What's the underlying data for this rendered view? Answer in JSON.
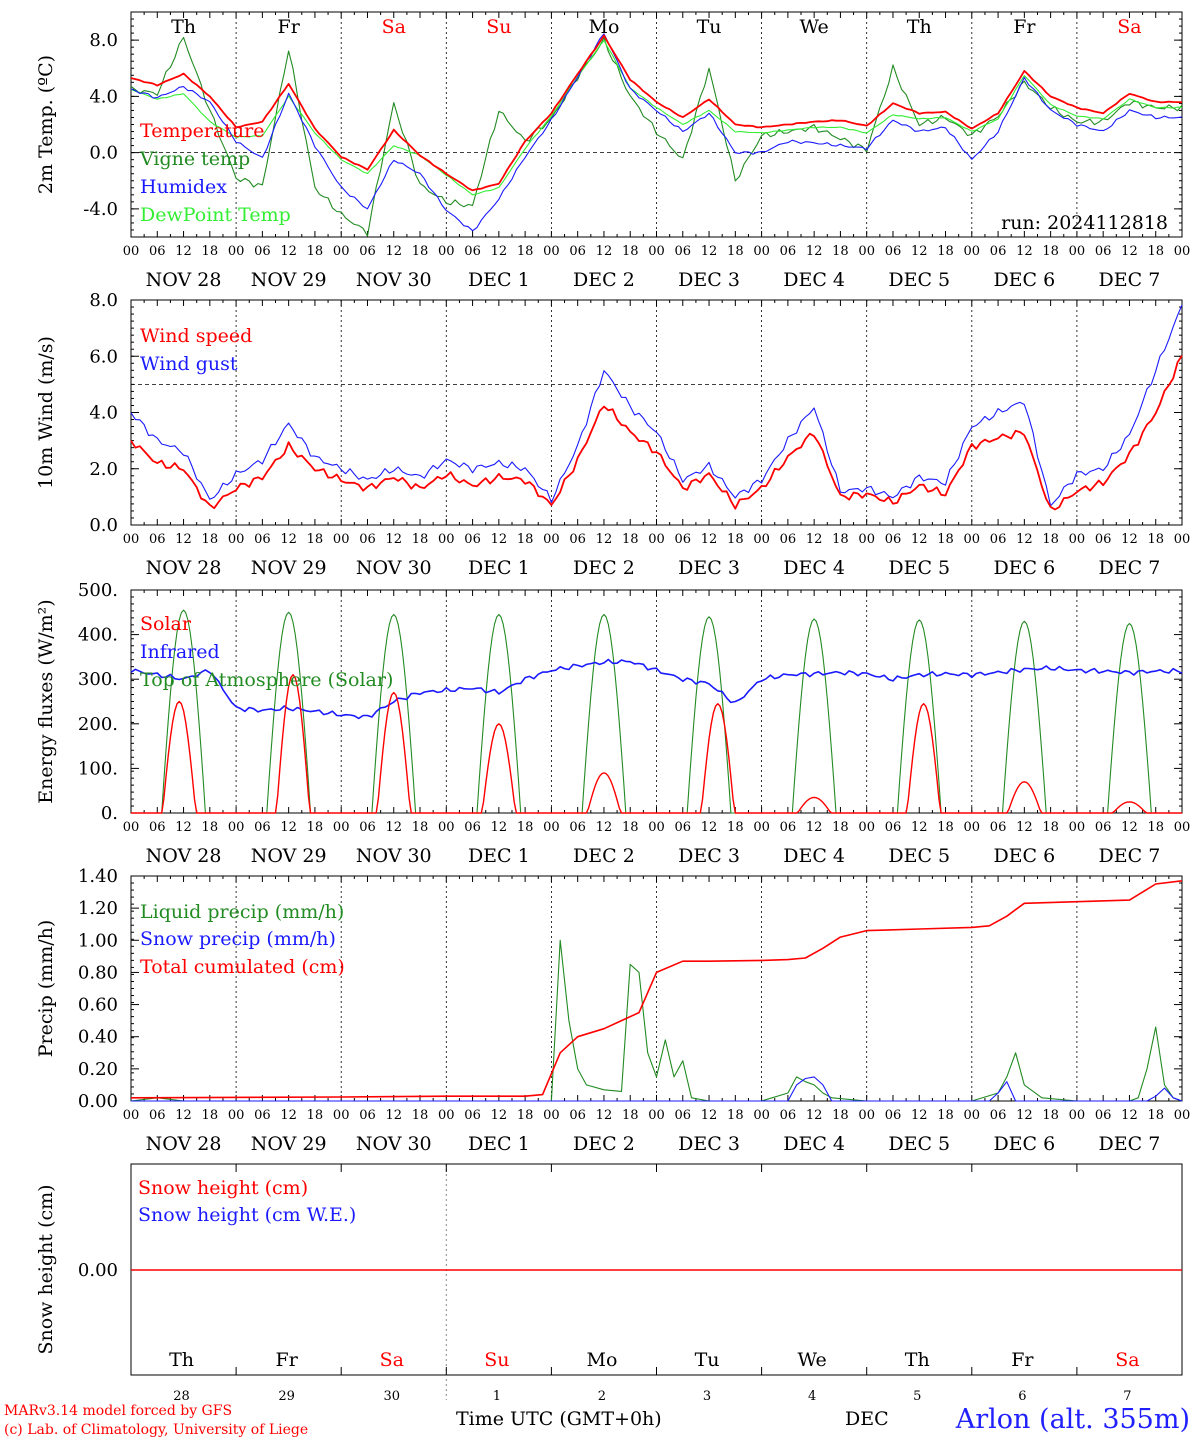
{
  "run_label": "run: 2024112818",
  "footer": {
    "credit_line1": "MARv3.14 model forced by GFS",
    "credit_line2": "(c) Lab. of Climatology, University of Liege",
    "time_axis_label": "Time UTC (GMT+0h)",
    "month_label": "DEC",
    "station": "Arlon (alt. 355m)"
  },
  "colors": {
    "red": "#ff0000",
    "green": "#228b22",
    "blue": "#1a1aff",
    "lightgreen": "#33ee33",
    "weekend": "#ff0000",
    "text": "#000000",
    "station": "#2020ff"
  },
  "day_names": [
    "Th",
    "Fr",
    "Sa",
    "Su",
    "Mo",
    "Tu",
    "We",
    "Th",
    "Fr",
    "Sa"
  ],
  "day_is_weekend": [
    false,
    false,
    true,
    true,
    false,
    false,
    false,
    false,
    false,
    true
  ],
  "date_labels": [
    "NOV 28",
    "NOV 29",
    "NOV 30",
    "DEC  1",
    "DEC  2",
    "DEC  3",
    "DEC  4",
    "DEC  5",
    "DEC  6",
    "DEC  7"
  ],
  "hour_labels": [
    "00",
    "06",
    "12",
    "18"
  ],
  "last_hour_label": "00",
  "day_numbers": [
    "28",
    "29",
    "30",
    "1",
    "2",
    "3",
    "4",
    "5",
    "6",
    "7"
  ],
  "chart_data": [
    {
      "type": "line",
      "ylabel": "2m Temp. (ºC)",
      "yticks": [
        "-4.0",
        "0.0",
        "4.0",
        "8.0"
      ],
      "ylim": [
        -6,
        10
      ],
      "xlim_hours": [
        0,
        240
      ],
      "reference_line": 0,
      "series": [
        {
          "name": "Temperature",
          "color": "red",
          "x": [
            0,
            6,
            12,
            18,
            24,
            30,
            36,
            42,
            48,
            54,
            60,
            66,
            72,
            78,
            84,
            90,
            96,
            102,
            108,
            114,
            120,
            126,
            132,
            138,
            144,
            150,
            156,
            162,
            168,
            174,
            180,
            186,
            192,
            198,
            204,
            210,
            216,
            222,
            228,
            234,
            240
          ],
          "y": [
            5.3,
            4.8,
            5.6,
            4.0,
            1.8,
            2.2,
            4.9,
            1.7,
            -0.3,
            -1.2,
            1.6,
            -0.2,
            -1.5,
            -2.7,
            -2.2,
            0.8,
            2.8,
            5.6,
            8.3,
            5.2,
            3.6,
            2.5,
            3.8,
            2.0,
            1.8,
            2.0,
            2.2,
            2.3,
            1.9,
            3.5,
            2.8,
            2.9,
            1.7,
            2.8,
            5.8,
            4.0,
            3.2,
            2.8,
            4.2,
            3.6,
            3.6
          ]
        },
        {
          "name": "Vigne temp",
          "color": "green",
          "x": [
            0,
            6,
            12,
            18,
            24,
            30,
            36,
            42,
            48,
            54,
            60,
            66,
            72,
            78,
            84,
            90,
            96,
            102,
            108,
            114,
            120,
            126,
            132,
            138,
            144,
            150,
            156,
            162,
            168,
            174,
            180,
            186,
            192,
            198,
            204,
            210,
            216,
            222,
            228,
            234,
            240
          ],
          "y": [
            4.5,
            4.2,
            8.2,
            3.0,
            -1.8,
            -2.4,
            7.4,
            -2.5,
            -4.4,
            -5.7,
            3.5,
            -2.3,
            -3.5,
            -3.8,
            3.0,
            0.8,
            2.4,
            5.4,
            8.0,
            4.0,
            1.5,
            -0.5,
            6.0,
            -2.0,
            1.2,
            1.5,
            1.8,
            1.0,
            0.2,
            6.0,
            2.0,
            2.5,
            1.2,
            2.6,
            5.0,
            3.2,
            2.2,
            2.2,
            3.6,
            3.2,
            3.2
          ]
        },
        {
          "name": "Humidex",
          "color": "blue",
          "x": [
            0,
            6,
            12,
            18,
            24,
            30,
            36,
            42,
            48,
            54,
            60,
            66,
            72,
            78,
            84,
            90,
            96,
            102,
            108,
            114,
            120,
            126,
            132,
            138,
            144,
            150,
            156,
            162,
            168,
            174,
            180,
            186,
            192,
            198,
            204,
            210,
            216,
            222,
            228,
            234,
            240
          ],
          "y": [
            4.5,
            3.9,
            4.7,
            3.6,
            0.8,
            -0.4,
            4.2,
            0.5,
            -2.5,
            -4.0,
            -0.5,
            -1.5,
            -4.1,
            -5.6,
            -3.3,
            -0.3,
            2.3,
            5.4,
            8.5,
            4.5,
            3.0,
            1.5,
            2.8,
            0.0,
            0.0,
            0.8,
            0.7,
            0.5,
            0.3,
            2.3,
            1.5,
            1.8,
            -0.5,
            1.5,
            5.3,
            3.0,
            2.0,
            1.5,
            3.0,
            2.5,
            2.5
          ]
        },
        {
          "name": "DewPoint Temp",
          "color": "lightgreen",
          "x": [
            0,
            6,
            12,
            18,
            24,
            30,
            36,
            42,
            48,
            54,
            60,
            66,
            72,
            78,
            84,
            90,
            96,
            102,
            108,
            114,
            120,
            126,
            132,
            138,
            144,
            150,
            156,
            162,
            168,
            174,
            180,
            186,
            192,
            198,
            204,
            210,
            216,
            222,
            228,
            234,
            240
          ],
          "y": [
            4.5,
            3.8,
            4.2,
            2.2,
            1.1,
            1.2,
            4.0,
            1.4,
            -0.5,
            -1.5,
            0.5,
            -0.2,
            -1.6,
            -3.0,
            -2.5,
            0.3,
            2.6,
            5.4,
            8.0,
            4.6,
            3.2,
            2.0,
            3.0,
            1.5,
            1.4,
            1.6,
            1.8,
            1.8,
            1.4,
            2.7,
            2.4,
            2.5,
            1.5,
            2.4,
            5.5,
            3.4,
            2.6,
            2.4,
            3.8,
            3.2,
            3.2
          ]
        }
      ]
    },
    {
      "type": "line",
      "ylabel": "10m Wind (m/s)",
      "yticks": [
        "0.0",
        "2.0",
        "4.0",
        "6.0",
        "8.0"
      ],
      "ylim": [
        0,
        8
      ],
      "xlim_hours": [
        0,
        240
      ],
      "reference_line": 5,
      "series": [
        {
          "name": "Wind speed",
          "color": "red",
          "x": [
            0,
            6,
            12,
            18,
            24,
            30,
            36,
            42,
            48,
            54,
            60,
            66,
            72,
            78,
            84,
            90,
            96,
            102,
            108,
            114,
            120,
            126,
            132,
            138,
            144,
            150,
            156,
            162,
            168,
            174,
            180,
            186,
            192,
            198,
            204,
            210,
            216,
            222,
            228,
            234,
            240
          ],
          "y": [
            3.0,
            2.2,
            2.0,
            0.6,
            1.3,
            1.7,
            2.8,
            2.0,
            1.6,
            1.3,
            1.7,
            1.3,
            1.8,
            1.4,
            1.7,
            1.6,
            0.7,
            2.3,
            4.3,
            3.3,
            2.6,
            1.3,
            1.8,
            0.7,
            1.3,
            2.4,
            3.3,
            1.0,
            1.1,
            0.8,
            1.4,
            1.1,
            2.8,
            3.1,
            3.3,
            0.5,
            1.2,
            1.5,
            2.5,
            4.0,
            6.0
          ]
        },
        {
          "name": "Wind gust",
          "color": "blue",
          "x": [
            0,
            6,
            12,
            18,
            24,
            30,
            36,
            42,
            48,
            54,
            60,
            66,
            72,
            78,
            84,
            90,
            96,
            102,
            108,
            114,
            120,
            126,
            132,
            138,
            144,
            150,
            156,
            162,
            168,
            174,
            180,
            186,
            192,
            198,
            204,
            210,
            216,
            222,
            228,
            234,
            240
          ],
          "y": [
            4.0,
            3.0,
            2.6,
            0.9,
            1.8,
            2.3,
            3.6,
            2.4,
            2.0,
            1.6,
            2.0,
            1.7,
            2.3,
            2.0,
            2.2,
            2.0,
            0.9,
            2.8,
            5.5,
            4.2,
            3.3,
            1.6,
            2.1,
            1.0,
            1.6,
            3.0,
            4.2,
            1.2,
            1.3,
            1.0,
            1.7,
            1.5,
            3.5,
            4.0,
            4.4,
            0.7,
            1.8,
            2.0,
            3.2,
            5.5,
            7.8
          ]
        }
      ]
    },
    {
      "type": "line",
      "ylabel": "Energy fluxes (W/m²)",
      "yticks": [
        "0.",
        "100.",
        "200.",
        "300.",
        "400.",
        "500."
      ],
      "ylim": [
        0,
        500
      ],
      "xlim_hours": [
        0,
        240
      ],
      "series": [
        {
          "name": "Solar",
          "color": "red",
          "peak_hours": [
            11,
            13,
            12,
            12,
            12,
            14,
            12,
            13,
            12,
            12
          ],
          "peak_values": [
            250,
            310,
            270,
            200,
            90,
            245,
            35,
            245,
            70,
            25
          ]
        },
        {
          "name": "Infrared",
          "color": "blue",
          "x": [
            0,
            6,
            12,
            18,
            24,
            30,
            36,
            42,
            48,
            54,
            60,
            66,
            72,
            78,
            84,
            90,
            96,
            102,
            108,
            114,
            120,
            126,
            132,
            138,
            144,
            150,
            156,
            162,
            168,
            174,
            180,
            186,
            192,
            198,
            204,
            210,
            216,
            222,
            228,
            234,
            240
          ],
          "y": [
            320,
            310,
            300,
            320,
            235,
            230,
            235,
            228,
            220,
            215,
            250,
            270,
            275,
            280,
            270,
            300,
            320,
            330,
            338,
            340,
            320,
            300,
            290,
            245,
            300,
            310,
            312,
            315,
            312,
            300,
            310,
            312,
            310,
            315,
            322,
            325,
            320,
            318,
            315,
            318,
            318
          ]
        },
        {
          "name": "Top of Atmosphere (Solar)",
          "color": "green",
          "peak_hours": [
            12,
            12,
            12,
            12,
            12,
            12,
            12,
            12,
            12,
            12
          ],
          "peak_values": [
            455,
            450,
            445,
            445,
            445,
            440,
            435,
            433,
            430,
            425
          ]
        }
      ]
    },
    {
      "type": "line",
      "ylabel": "Precip (mm/h)",
      "yticks": [
        "0.00",
        "0.20",
        "0.40",
        "0.60",
        "0.80",
        "1.00",
        "1.20",
        "1.40"
      ],
      "ylim": [
        0,
        1.4
      ],
      "xlim_hours": [
        0,
        240
      ],
      "series": [
        {
          "name": "Liquid precip (mm/h)",
          "color": "green",
          "x": [
            0,
            6,
            12,
            18,
            24,
            48,
            84,
            90,
            96,
            98,
            100,
            102,
            104,
            108,
            112,
            114,
            116,
            118,
            120,
            122,
            124,
            126,
            128,
            132,
            144,
            150,
            152,
            154,
            156,
            158,
            160,
            168,
            180,
            192,
            198,
            200,
            202,
            204,
            208,
            216,
            228,
            230,
            232,
            234,
            236,
            238,
            240
          ],
          "y": [
            0,
            0.02,
            0,
            0,
            0,
            0,
            0,
            0,
            0,
            1.0,
            0.5,
            0.2,
            0.1,
            0.07,
            0.06,
            0.85,
            0.8,
            0.3,
            0.15,
            0.38,
            0.15,
            0.25,
            0.02,
            0,
            0,
            0.05,
            0.15,
            0.12,
            0.1,
            0.05,
            0.02,
            0,
            0,
            0,
            0.05,
            0.15,
            0.3,
            0.1,
            0.02,
            0,
            0,
            0.02,
            0.2,
            0.46,
            0.1,
            0.02,
            0
          ]
        },
        {
          "name": "Snow precip (mm/h)",
          "color": "blue",
          "x": [
            0,
            150,
            152,
            154,
            156,
            158,
            160,
            196,
            198,
            200,
            202,
            232,
            234,
            236,
            238,
            240
          ],
          "y": [
            0,
            0,
            0.1,
            0.14,
            0.15,
            0.1,
            0,
            0,
            0.05,
            0.12,
            0,
            0,
            0.03,
            0.08,
            0.02,
            0
          ]
        },
        {
          "name": "Total cumulated (cm)",
          "color": "red",
          "x": [
            0,
            48,
            72,
            90,
            94,
            98,
            102,
            108,
            112,
            116,
            120,
            126,
            132,
            144,
            150,
            154,
            158,
            162,
            168,
            180,
            192,
            196,
            200,
            204,
            216,
            228,
            234,
            240
          ],
          "y": [
            0.02,
            0.025,
            0.03,
            0.03,
            0.04,
            0.3,
            0.4,
            0.45,
            0.5,
            0.55,
            0.8,
            0.87,
            0.87,
            0.875,
            0.88,
            0.89,
            0.95,
            1.02,
            1.06,
            1.07,
            1.08,
            1.09,
            1.15,
            1.23,
            1.24,
            1.25,
            1.35,
            1.37
          ]
        }
      ]
    },
    {
      "type": "line",
      "ylabel": "Snow height (cm)",
      "yticks": [
        "0.00"
      ],
      "xlim_hours": [
        0,
        240
      ],
      "series": [
        {
          "name": "Snow height (cm)",
          "color": "red",
          "x": [
            0,
            240
          ],
          "y": [
            0,
            0
          ]
        },
        {
          "name": "Snow height (cm W.E.)",
          "color": "blue",
          "x": [],
          "y": []
        }
      ]
    }
  ]
}
